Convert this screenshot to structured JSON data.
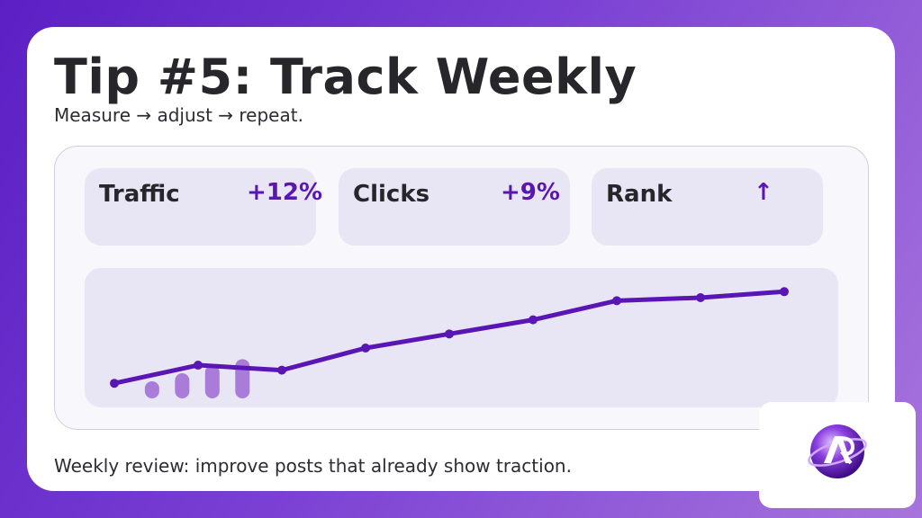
{
  "slide": {
    "title": "Tip #5: Track Weekly",
    "subtitle": "Measure → adjust → repeat.",
    "footer": "Weekly review: improve posts that already show traction."
  },
  "metrics": [
    {
      "label": "Traffic",
      "value": "+12%"
    },
    {
      "label": "Clicks",
      "value": "+9%"
    },
    {
      "label": "Rank",
      "value": "↑"
    }
  ],
  "colors": {
    "accent": "#5a16b4",
    "bar": "#a87cd8",
    "panel_tile": "#e8e5f4"
  },
  "logo": {
    "icon": "ar-monogram-orb-icon"
  },
  "chart_data": {
    "type": "line",
    "title": "",
    "xlabel": "",
    "ylabel": "",
    "x": [
      1,
      2,
      3,
      4,
      5,
      6,
      7,
      8,
      9
    ],
    "series": [
      {
        "values": [
          0.15,
          0.33,
          0.28,
          0.5,
          0.64,
          0.78,
          0.97,
          1.0,
          1.06
        ]
      }
    ],
    "bars": [
      0.17,
      0.25,
      0.33,
      0.39
    ],
    "ylim": [
      0,
      1.25
    ],
    "grid": false
  }
}
